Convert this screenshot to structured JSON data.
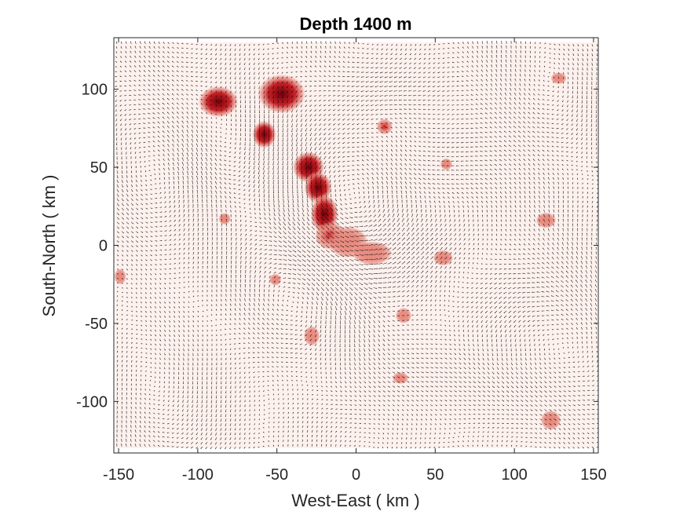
{
  "chart_data": {
    "type": "heatmap",
    "subtype": "vector-field-over-scalar-field",
    "title": "Depth 1400 m",
    "xlabel": "West-East ( km )",
    "ylabel": "South-North ( km )",
    "xlim": [
      -153,
      153
    ],
    "ylim": [
      -133,
      133
    ],
    "xticks": [
      -150,
      -100,
      -50,
      0,
      50,
      100,
      150
    ],
    "yticks": [
      -100,
      -50,
      0,
      50,
      100
    ],
    "xtick_labels": [
      "-150",
      "-100",
      "-50",
      "0",
      "50",
      "100",
      "150"
    ],
    "ytick_labels": [
      "-100",
      "-50",
      "0",
      "50",
      "100"
    ],
    "grid": false,
    "colormap": {
      "low": "#ffffff",
      "mid_low": "#fbe3de",
      "mid": "#e8897d",
      "mid_high": "#c4161c",
      "high": "#6d0008"
    },
    "field_extent": {
      "x": [
        -152,
        152
      ],
      "y": [
        -130,
        130
      ]
    },
    "background_tint": "#fdf1ee",
    "vector_color": "#000000",
    "vector_spacing_km": 3,
    "hotspots": [
      {
        "x": -87,
        "y": 92,
        "rx": 10,
        "ry": 8,
        "intensity": 1.0
      },
      {
        "x": -47,
        "y": 97,
        "rx": 12,
        "ry": 10,
        "intensity": 1.0
      },
      {
        "x": -58,
        "y": 71,
        "rx": 6,
        "ry": 7,
        "intensity": 0.95
      },
      {
        "x": -30,
        "y": 50,
        "rx": 8,
        "ry": 8,
        "intensity": 0.9
      },
      {
        "x": -24,
        "y": 37,
        "rx": 7,
        "ry": 8,
        "intensity": 0.85
      },
      {
        "x": -20,
        "y": 20,
        "rx": 7,
        "ry": 10,
        "intensity": 0.85
      },
      {
        "x": -16,
        "y": 6,
        "rx": 8,
        "ry": 7,
        "intensity": 0.7
      },
      {
        "x": -5,
        "y": 2,
        "rx": 10,
        "ry": 8,
        "intensity": 0.5
      },
      {
        "x": 10,
        "y": -5,
        "rx": 10,
        "ry": 6,
        "intensity": 0.4
      },
      {
        "x": 18,
        "y": 76,
        "rx": 4,
        "ry": 4,
        "intensity": 0.8
      },
      {
        "x": 55,
        "y": -8,
        "rx": 5,
        "ry": 4,
        "intensity": 0.5
      },
      {
        "x": 120,
        "y": 16,
        "rx": 5,
        "ry": 4,
        "intensity": 0.45
      },
      {
        "x": -83,
        "y": 17,
        "rx": 3,
        "ry": 3,
        "intensity": 0.4
      },
      {
        "x": -51,
        "y": -22,
        "rx": 3,
        "ry": 3,
        "intensity": 0.45
      },
      {
        "x": -149,
        "y": -20,
        "rx": 3,
        "ry": 4,
        "intensity": 0.4
      },
      {
        "x": 128,
        "y": 107,
        "rx": 4,
        "ry": 3,
        "intensity": 0.35
      },
      {
        "x": 28,
        "y": -85,
        "rx": 4,
        "ry": 3,
        "intensity": 0.35
      },
      {
        "x": -28,
        "y": -58,
        "rx": 4,
        "ry": 5,
        "intensity": 0.4
      },
      {
        "x": 30,
        "y": -45,
        "rx": 4,
        "ry": 4,
        "intensity": 0.35
      },
      {
        "x": 123,
        "y": -112,
        "rx": 5,
        "ry": 5,
        "intensity": 0.3
      },
      {
        "x": 57,
        "y": 52,
        "rx": 3,
        "ry": 3,
        "intensity": 0.35
      }
    ],
    "vortices": [
      {
        "x": 0,
        "y": 20,
        "strength": 1.6,
        "radius": 35
      },
      {
        "x": -30,
        "y": -30,
        "strength": -1.0,
        "radius": 30
      },
      {
        "x": 60,
        "y": 20,
        "strength": 0.9,
        "radius": 25
      },
      {
        "x": -80,
        "y": 60,
        "strength": -0.8,
        "radius": 25
      },
      {
        "x": 100,
        "y": -60,
        "strength": 0.7,
        "radius": 35
      },
      {
        "x": -110,
        "y": -80,
        "strength": -0.7,
        "radius": 35
      },
      {
        "x": 20,
        "y": 85,
        "strength": 0.8,
        "radius": 20
      },
      {
        "x": 120,
        "y": 90,
        "strength": -0.6,
        "radius": 30
      },
      {
        "x": -120,
        "y": 40,
        "strength": 0.6,
        "radius": 30
      },
      {
        "x": 40,
        "y": -100,
        "strength": -0.6,
        "radius": 30
      }
    ]
  }
}
